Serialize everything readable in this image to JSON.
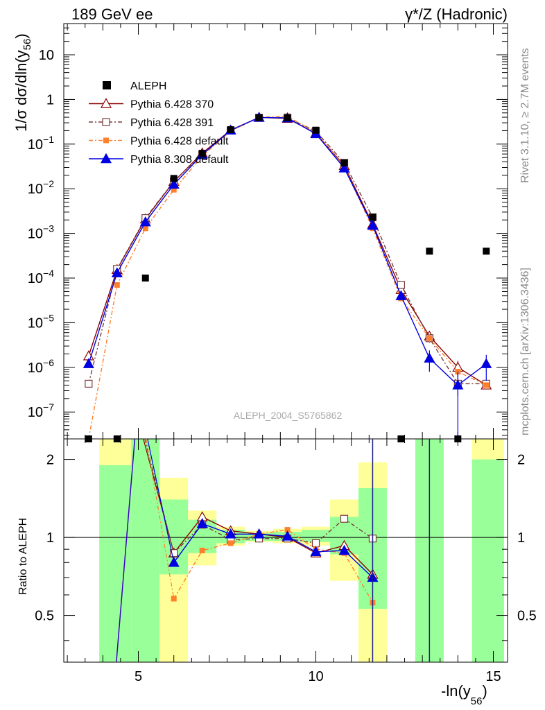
{
  "header": {
    "left": "189 GeV ee",
    "right": "γ*/Z (Hadronic)"
  },
  "side_texts": {
    "rivet": "Rivet 3.1.10, ≥ 2.7M events",
    "mcplots": "mcplots.cern.ch [arXiv:1306.3436]"
  },
  "analysis_id": "ALEPH_2004_S5765862",
  "main_ylabel": "1/σ  dσ/dln(y",
  "main_ylabel_sub": "56",
  "main_ylabel_end": ")",
  "ratio_ylabel": "Ratio to ALEPH",
  "xlabel": "-ln(y",
  "xlabel_sub": "56",
  "xlabel_end": ")",
  "legend": [
    {
      "label": "ALEPH",
      "color": "#000000",
      "marker": "square-filled"
    },
    {
      "label": "Pythia 6.428 370",
      "color": "#8b0000",
      "marker": "triangle-open"
    },
    {
      "label": "Pythia 6.428 391",
      "color": "#7a3a3a",
      "marker": "square-open"
    },
    {
      "label": "Pythia 6.428 default",
      "color": "#ff7f2a",
      "marker": "square-filled"
    },
    {
      "label": "Pythia 8.308 default",
      "color": "#0000e0",
      "marker": "triangle-filled"
    }
  ],
  "chart_data": {
    "type": "line",
    "xlabel": "-ln(y56)",
    "ylabel": "1/σ dσ/dln(y56)",
    "xlim": [
      2.9,
      15.4
    ],
    "ylim": [
      2.5e-08,
      50
    ],
    "yscale": "log",
    "x_ticks": [
      5,
      10,
      15
    ],
    "y_ticks": [
      {
        "v": 1e-07,
        "m": "10",
        "e": "−7"
      },
      {
        "v": 1e-06,
        "m": "10",
        "e": "−6"
      },
      {
        "v": 1e-05,
        "m": "10",
        "e": "−5"
      },
      {
        "v": 0.0001,
        "m": "10",
        "e": "−4"
      },
      {
        "v": 0.001,
        "m": "10",
        "e": "−3"
      },
      {
        "v": 0.01,
        "m": "10",
        "e": "−2"
      },
      {
        "v": 0.1,
        "m": "10",
        "e": "−1"
      },
      {
        "v": 1,
        "m": "1",
        "e": ""
      },
      {
        "v": 10,
        "m": "10",
        "e": ""
      }
    ],
    "x": [
      3.6,
      4.4,
      5.2,
      6.0,
      6.8,
      7.6,
      8.4,
      9.2,
      10.0,
      10.8,
      11.6,
      12.4,
      13.2,
      14.0,
      14.8
    ],
    "data": {
      "name": "ALEPH",
      "values": [
        0,
        0,
        0.0001,
        0.017,
        0.062,
        0.21,
        0.39,
        0.39,
        0.205,
        0.038,
        0.0023,
        0,
        0.0004,
        0,
        0.0004
      ]
    },
    "series": [
      {
        "name": "Pythia 6.428 370",
        "values": [
          1.8e-06,
          0.000155,
          0.0021,
          0.0145,
          0.063,
          0.205,
          0.395,
          0.375,
          0.175,
          0.033,
          0.0016,
          5.5e-05,
          5e-06,
          1e-06,
          4e-07
        ],
        "err": [
          5e-07,
          0,
          0,
          0,
          0,
          0,
          0,
          0,
          0,
          0,
          0,
          0,
          1e-06,
          4e-07,
          0
        ]
      },
      {
        "name": "Pythia 6.428 391",
        "values": [
          4.3e-07,
          0.00016,
          0.0022,
          0.0148,
          0.058,
          0.2,
          0.39,
          0.39,
          0.195,
          0.038,
          0.0023,
          7e-05,
          4.5e-06,
          4.3e-07,
          4.3e-07
        ],
        "err": [
          0,
          0,
          0,
          0,
          0,
          0,
          0,
          0,
          0,
          0,
          0,
          0,
          1e-06,
          2e-07,
          0
        ]
      },
      {
        "name": "Pythia 6.428 default",
        "values": [
          0,
          7e-05,
          0.0013,
          0.0095,
          0.054,
          0.195,
          0.4,
          0.42,
          0.18,
          0.031,
          0.0013,
          3.5e-05,
          4.5e-06,
          8e-07,
          4e-07
        ],
        "err": [
          0,
          0,
          0,
          0,
          0,
          0,
          0,
          0,
          0,
          0,
          0,
          0,
          1e-06,
          0,
          0
        ]
      },
      {
        "name": "Pythia 8.308 default",
        "values": [
          1.2e-06,
          0.00013,
          0.0018,
          0.0125,
          0.058,
          0.205,
          0.395,
          0.385,
          0.17,
          0.029,
          0.0015,
          4e-05,
          1.6e-06,
          4e-07,
          1.2e-06
        ],
        "err": [
          0,
          0,
          0,
          0,
          0,
          0,
          0,
          0,
          0,
          0,
          0,
          0,
          8e-07,
          4e-07,
          7e-07
        ]
      }
    ],
    "ratio": {
      "ylabel": "Ratio to ALEPH",
      "ylim": [
        0.33,
        2.4
      ],
      "y_ticks": [
        {
          "v": 0.5,
          "t": "0.5"
        },
        {
          "v": 1,
          "t": "1"
        },
        {
          "v": 2,
          "t": "2"
        }
      ],
      "bands": [
        {
          "x0": 3.9,
          "x1": 4.8,
          "green": [
            0.33,
            1.9
          ],
          "yellow": [
            0.33,
            2.4
          ]
        },
        {
          "x0": 4.8,
          "x1": 5.6,
          "green": [
            0.33,
            2.4
          ],
          "yellow": [
            0.33,
            2.4
          ]
        },
        {
          "x0": 5.6,
          "x1": 6.4,
          "green": [
            0.72,
            1.4
          ],
          "yellow": [
            0.33,
            1.7
          ]
        },
        {
          "x0": 6.4,
          "x1": 7.2,
          "green": [
            0.87,
            1.17
          ],
          "yellow": [
            0.78,
            1.27
          ]
        },
        {
          "x0": 7.2,
          "x1": 8.0,
          "green": [
            0.95,
            1.07
          ],
          "yellow": [
            0.93,
            1.1
          ]
        },
        {
          "x0": 8.0,
          "x1": 8.8,
          "green": [
            0.97,
            1.04
          ],
          "yellow": [
            0.96,
            1.06
          ]
        },
        {
          "x0": 8.8,
          "x1": 9.6,
          "green": [
            0.97,
            1.05
          ],
          "yellow": [
            0.95,
            1.08
          ]
        },
        {
          "x0": 9.6,
          "x1": 10.4,
          "green": [
            0.96,
            1.07
          ],
          "yellow": [
            0.93,
            1.1
          ]
        },
        {
          "x0": 10.4,
          "x1": 11.2,
          "green": [
            0.86,
            1.2
          ],
          "yellow": [
            0.68,
            1.4
          ]
        },
        {
          "x0": 11.2,
          "x1": 12.0,
          "green": [
            0.53,
            1.55
          ],
          "yellow": [
            0.33,
            1.95
          ]
        },
        {
          "x0": 12.8,
          "x1": 13.6,
          "green": [
            0.33,
            2.4
          ],
          "yellow": [
            0.33,
            2.4
          ]
        },
        {
          "x0": 14.4,
          "x1": 15.3,
          "green": [
            0.33,
            2.0
          ],
          "yellow": [
            0.33,
            2.4
          ]
        }
      ],
      "series": [
        {
          "name": "Pythia 6.428 370",
          "x": [
            6.0,
            6.8,
            7.6,
            8.4,
            9.2,
            10.0,
            10.8,
            11.6
          ],
          "values": [
            0.87,
            1.2,
            1.06,
            1.03,
            1.0,
            0.87,
            0.93,
            0.72
          ]
        },
        {
          "name": "Pythia 6.428 391",
          "x": [
            6.0,
            6.8,
            7.6,
            8.4,
            9.2,
            10.0,
            10.8,
            11.6
          ],
          "values": [
            0.87,
            1.12,
            0.98,
            0.99,
            0.99,
            0.95,
            1.18,
            0.99
          ]
        },
        {
          "name": "Pythia 6.428 default",
          "x": [
            6.0,
            6.8,
            7.6,
            8.4,
            9.2,
            10.0,
            10.8,
            11.6
          ],
          "values": [
            0.58,
            0.89,
            0.95,
            1.03,
            1.07,
            0.9,
            0.87,
            0.56
          ]
        },
        {
          "name": "Pythia 8.308 default",
          "x": [
            6.0,
            6.8,
            7.6,
            8.4,
            9.2,
            10.0,
            10.8,
            11.6
          ],
          "values": [
            0.8,
            1.13,
            1.03,
            1.03,
            1.01,
            0.88,
            0.89,
            0.7
          ]
        }
      ]
    }
  }
}
